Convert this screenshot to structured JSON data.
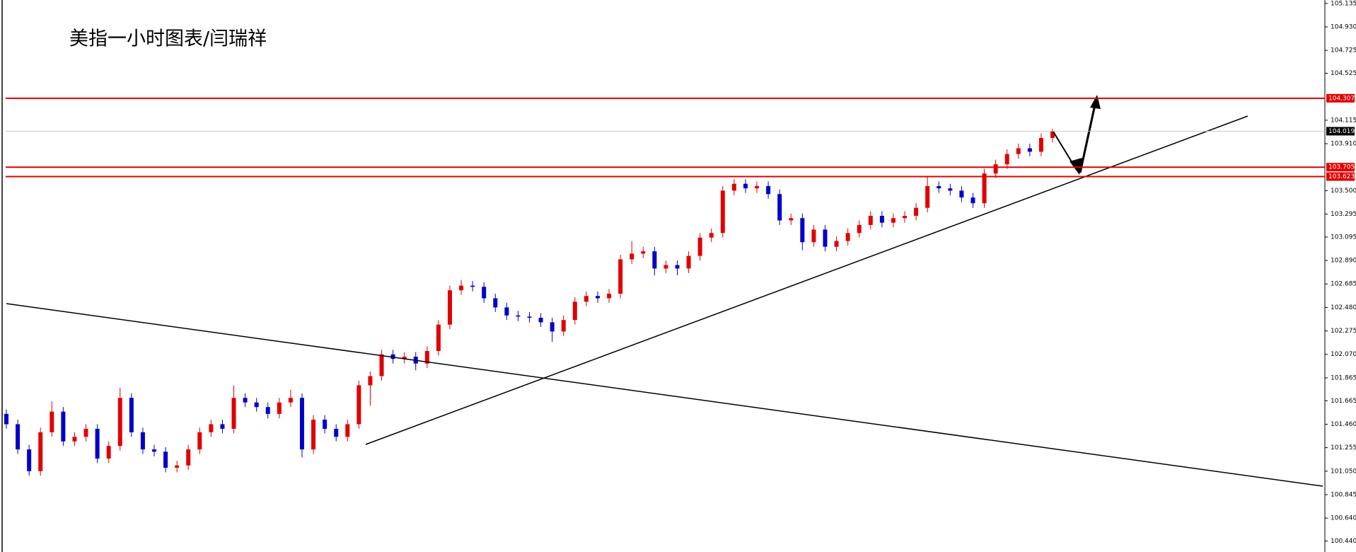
{
  "chart_data": {
    "type": "candlestick",
    "title": "美指一小时图表/闫瑞祥",
    "up_color": "#e00000",
    "down_color": "#0000c8",
    "ylim": [
      100.344,
      105.165
    ],
    "yticks": [
      {
        "value": 105.135,
        "label": "105.135"
      },
      {
        "value": 104.93,
        "label": "104.930"
      },
      {
        "value": 104.725,
        "label": "104.725"
      },
      {
        "value": 104.525,
        "label": "104.525"
      },
      {
        "value": 104.115,
        "label": "104.115"
      },
      {
        "value": 103.91,
        "label": "103.910"
      },
      {
        "value": 103.5,
        "label": "103.500"
      },
      {
        "value": 103.295,
        "label": "103.295"
      },
      {
        "value": 103.095,
        "label": "103.095"
      },
      {
        "value": 102.89,
        "label": "102.890"
      },
      {
        "value": 102.685,
        "label": "102.685"
      },
      {
        "value": 102.48,
        "label": "102.480"
      },
      {
        "value": 102.275,
        "label": "102.275"
      },
      {
        "value": 102.07,
        "label": "102.070"
      },
      {
        "value": 101.865,
        "label": "101.865"
      },
      {
        "value": 101.665,
        "label": "101.665"
      },
      {
        "value": 101.46,
        "label": "101.460"
      },
      {
        "value": 101.255,
        "label": "101.255"
      },
      {
        "value": 101.05,
        "label": "101.050"
      },
      {
        "value": 100.845,
        "label": "100.845"
      },
      {
        "value": 100.64,
        "label": "100.640"
      },
      {
        "value": 100.44,
        "label": "100.440"
      }
    ],
    "levels": [
      {
        "value": 104.307,
        "color": "#e00000",
        "label_fill": "#e00000"
      },
      {
        "value": 104.019,
        "color": "#c8c8c8",
        "label_fill": "#000000"
      },
      {
        "value": 103.705,
        "color": "#e00000",
        "label_fill": "#e00000"
      },
      {
        "value": 103.623,
        "color": "#e00000",
        "label_fill": "#e00000"
      }
    ],
    "open": [
      101.55,
      101.46,
      101.24,
      101.05,
      101.39,
      101.57,
      101.31,
      101.35,
      101.42,
      101.16,
      101.27,
      101.69,
      101.39,
      101.24,
      101.22,
      101.08,
      101.1,
      101.24,
      101.39,
      101.46,
      101.42,
      101.69,
      101.65,
      101.61,
      101.55,
      101.65,
      101.69,
      101.24,
      101.5,
      101.42,
      101.35,
      101.46,
      101.8,
      101.88,
      102.07,
      102.03,
      102.05,
      101.99,
      102.1,
      102.33,
      102.63,
      102.67,
      102.66,
      102.56,
      102.48,
      102.41,
      102.4,
      102.39,
      102.35,
      102.27,
      102.37,
      102.53,
      102.58,
      102.56,
      102.6,
      102.9,
      102.95,
      102.97,
      102.82,
      102.85,
      102.82,
      102.93,
      103.09,
      103.13,
      103.5,
      103.56,
      103.52,
      103.54,
      103.47,
      103.24,
      103.26,
      103.05,
      103.16,
      103.01,
      103.06,
      103.13,
      103.2,
      103.28,
      103.22,
      103.26,
      103.28,
      103.35,
      103.54,
      103.52,
      103.5,
      103.44,
      103.39,
      103.65,
      103.73,
      103.82,
      103.87,
      103.84,
      103.96
    ],
    "high": [
      101.59,
      101.5,
      101.28,
      101.43,
      101.66,
      101.61,
      101.39,
      101.46,
      101.46,
      101.31,
      101.78,
      101.73,
      101.43,
      101.28,
      101.26,
      101.14,
      101.28,
      101.43,
      101.5,
      101.5,
      101.8,
      101.73,
      101.69,
      101.65,
      101.69,
      101.76,
      101.73,
      101.54,
      101.54,
      101.46,
      101.5,
      101.84,
      101.92,
      102.11,
      102.11,
      102.09,
      102.09,
      102.14,
      102.37,
      102.67,
      102.72,
      102.71,
      102.7,
      102.6,
      102.52,
      102.45,
      102.44,
      102.43,
      102.39,
      102.41,
      102.57,
      102.62,
      102.62,
      102.64,
      102.94,
      103.06,
      103.01,
      103.01,
      102.89,
      102.89,
      102.97,
      103.13,
      103.17,
      103.54,
      103.6,
      103.6,
      103.58,
      103.58,
      103.51,
      103.3,
      103.3,
      103.2,
      103.2,
      103.1,
      103.17,
      103.24,
      103.32,
      103.32,
      103.3,
      103.32,
      103.39,
      103.62,
      103.58,
      103.56,
      103.54,
      103.48,
      103.69,
      103.77,
      103.86,
      103.91,
      103.91,
      104.0,
      104.04
    ],
    "low": [
      101.42,
      101.2,
      101.01,
      101.01,
      101.35,
      101.27,
      101.27,
      101.31,
      101.12,
      101.12,
      101.23,
      101.35,
      101.2,
      101.18,
      101.04,
      101.04,
      101.06,
      101.2,
      101.35,
      101.38,
      101.38,
      101.61,
      101.57,
      101.51,
      101.51,
      101.61,
      101.17,
      101.2,
      101.38,
      101.31,
      101.31,
      101.42,
      101.62,
      101.84,
      101.99,
      101.99,
      101.93,
      101.95,
      102.06,
      102.29,
      102.59,
      102.62,
      102.52,
      102.44,
      102.37,
      102.36,
      102.35,
      102.31,
      102.18,
      102.23,
      102.33,
      102.49,
      102.52,
      102.52,
      102.56,
      102.86,
      102.91,
      102.76,
      102.78,
      102.76,
      102.78,
      102.89,
      103.05,
      103.09,
      103.46,
      103.48,
      103.48,
      103.43,
      103.2,
      103.2,
      102.98,
      103.01,
      102.97,
      102.97,
      103.02,
      103.09,
      103.16,
      103.18,
      103.18,
      103.22,
      103.24,
      103.31,
      103.48,
      103.46,
      103.4,
      103.35,
      103.35,
      103.61,
      103.69,
      103.78,
      103.8,
      103.8,
      103.92
    ],
    "close": [
      101.46,
      101.24,
      101.05,
      101.39,
      101.57,
      101.31,
      101.35,
      101.42,
      101.16,
      101.27,
      101.69,
      101.39,
      101.24,
      101.22,
      101.08,
      101.1,
      101.24,
      101.39,
      101.46,
      101.42,
      101.69,
      101.65,
      101.61,
      101.55,
      101.65,
      101.69,
      101.24,
      101.5,
      101.42,
      101.35,
      101.46,
      101.8,
      101.88,
      102.07,
      102.03,
      102.05,
      101.99,
      102.1,
      102.33,
      102.63,
      102.67,
      102.66,
      102.56,
      102.48,
      102.41,
      102.4,
      102.39,
      102.35,
      102.27,
      102.37,
      102.53,
      102.58,
      102.56,
      102.6,
      102.9,
      102.95,
      102.97,
      102.82,
      102.85,
      102.82,
      102.93,
      103.09,
      103.13,
      103.5,
      103.56,
      103.52,
      103.54,
      103.47,
      103.24,
      103.26,
      103.05,
      103.16,
      103.01,
      103.06,
      103.13,
      103.2,
      103.28,
      103.22,
      103.26,
      103.28,
      103.35,
      103.54,
      103.52,
      103.5,
      103.44,
      103.39,
      103.65,
      103.73,
      103.82,
      103.87,
      103.84,
      103.96,
      104.02
    ]
  }
}
